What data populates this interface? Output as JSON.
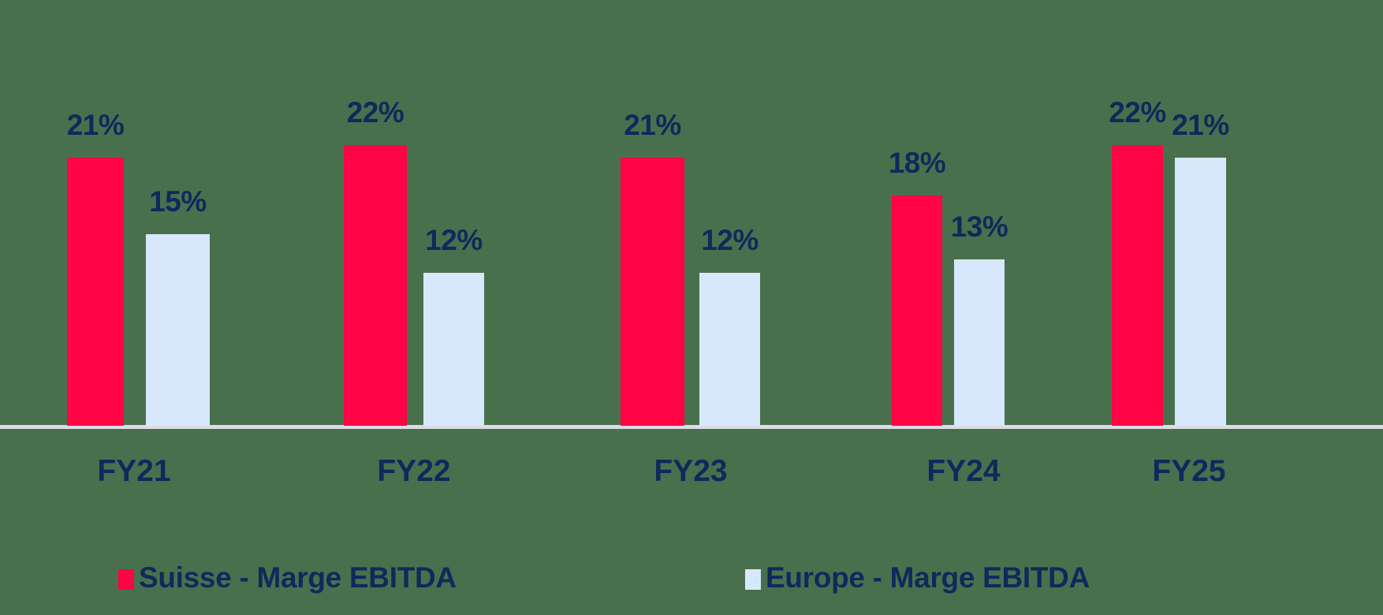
{
  "chart_data": {
    "type": "bar",
    "title": "",
    "xlabel": "",
    "ylabel": "",
    "categories": [
      "FY21",
      "FY22",
      "FY23",
      "FY24",
      "FY25"
    ],
    "series": [
      {
        "name": "Suisse - Marge EBITDA",
        "color": "#ff0446",
        "values": [
          21,
          22,
          21,
          18,
          22
        ],
        "labels": [
          "21%",
          "22%",
          "21%",
          "18%",
          "22%"
        ]
      },
      {
        "name": "Europe - Marge EBITDA",
        "color": "#d8e8fc",
        "values": [
          15,
          12,
          12,
          13,
          21
        ],
        "labels": [
          "15%",
          "12%",
          "12%",
          "13%",
          "21%"
        ]
      }
    ],
    "ylim": [
      0,
      25
    ],
    "grid": false,
    "legend_position": "bottom",
    "value_format": "percent"
  },
  "legend": {
    "items": [
      {
        "label": "Suisse - Marge EBITDA",
        "color": "#ff0446"
      },
      {
        "label": "Europe - Marge EBITDA",
        "color": "#d8e8fc"
      }
    ]
  }
}
